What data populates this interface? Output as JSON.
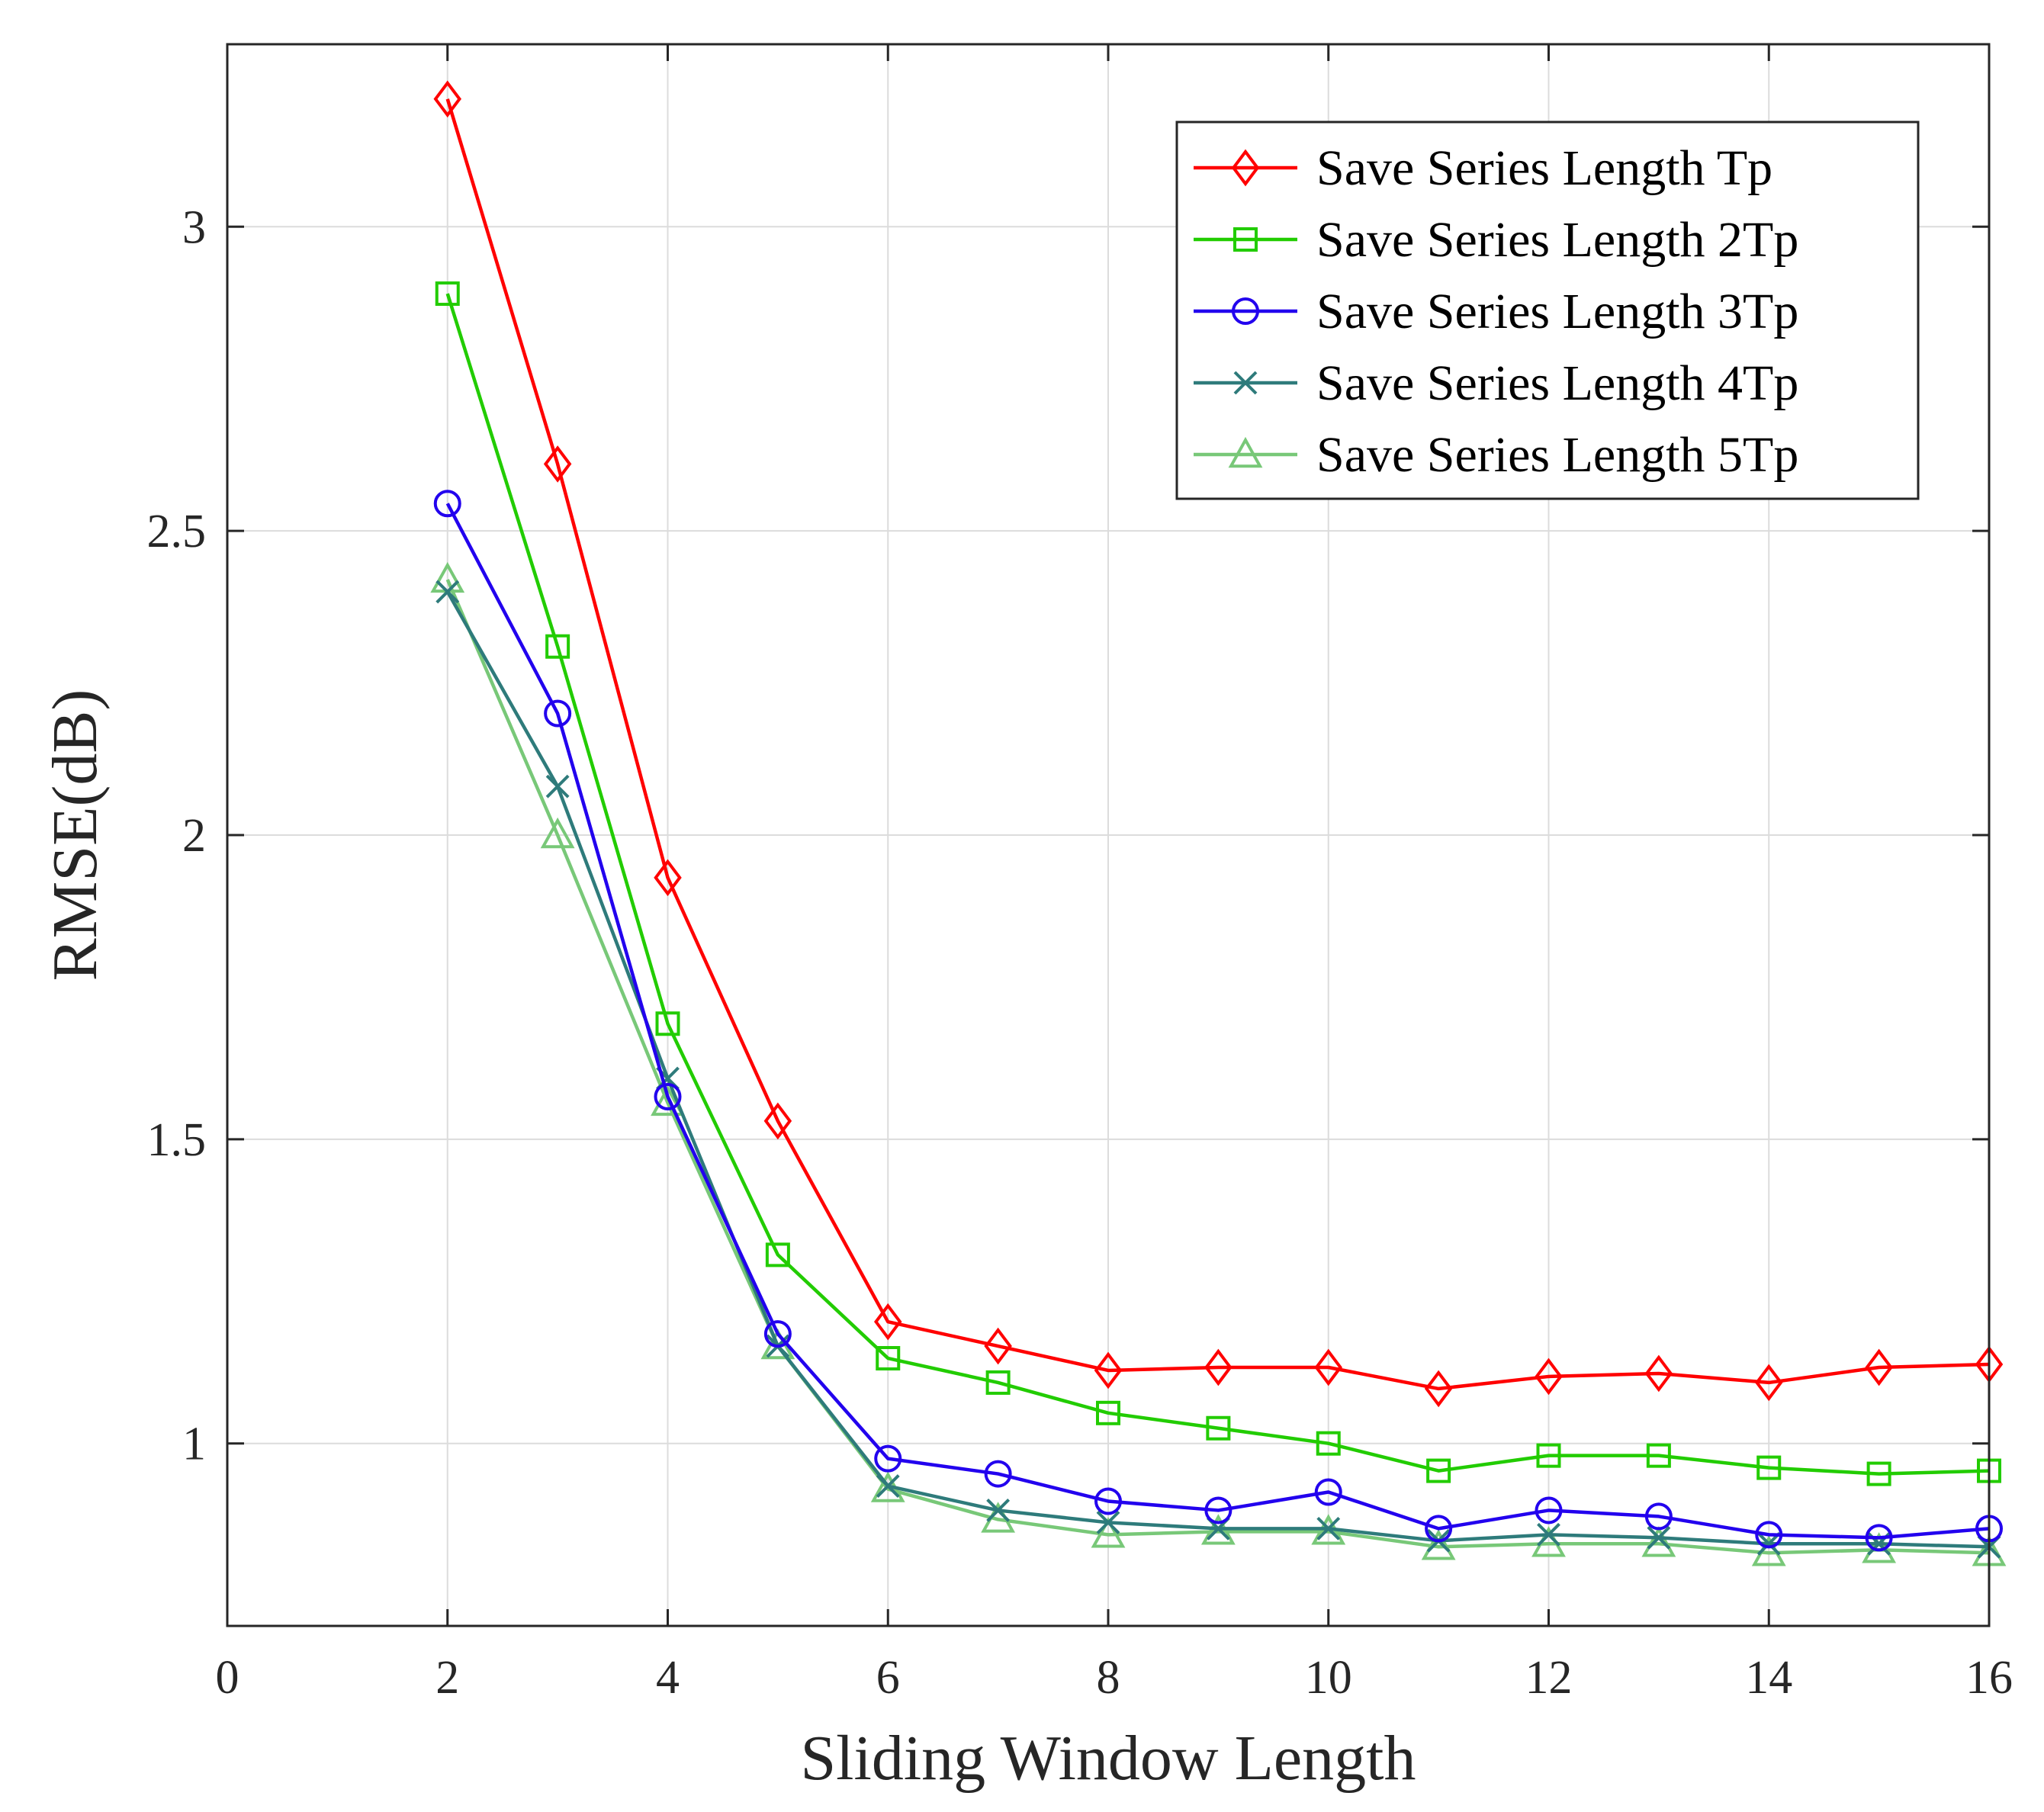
{
  "chart_data": {
    "type": "line",
    "title": "",
    "xlabel": "Sliding Window Length",
    "ylabel": "RMSE(dB)",
    "xlim": [
      0,
      16
    ],
    "ylim": [
      0.7,
      3.3
    ],
    "grid": true,
    "legend_position": "top-right",
    "x_ticks": [
      0,
      2,
      4,
      6,
      8,
      10,
      12,
      14,
      16
    ],
    "x_tick_labels": [
      "0",
      "2",
      "4",
      "6",
      "8",
      "10",
      "12",
      "14",
      "16"
    ],
    "y_ticks": [
      1,
      1.5,
      2,
      2.5,
      3
    ],
    "y_tick_labels": [
      "1",
      "1.5",
      "2",
      "2.5",
      "3"
    ],
    "x": [
      2,
      3,
      4,
      5,
      6,
      7,
      8,
      9,
      10,
      11,
      12,
      13,
      14,
      15,
      16
    ],
    "series": [
      {
        "name": "Save Series Length Tp",
        "color": "#ff0000",
        "marker": "diamond",
        "values": [
          3.21,
          2.61,
          1.93,
          1.53,
          1.2,
          1.16,
          1.12,
          1.125,
          1.125,
          1.09,
          1.11,
          1.115,
          1.1,
          1.125,
          1.13
        ]
      },
      {
        "name": "Save Series Length 2Tp",
        "color": "#22cc00",
        "marker": "square",
        "values": [
          2.89,
          2.31,
          1.69,
          1.31,
          1.14,
          1.1,
          1.05,
          1.025,
          1.0,
          0.955,
          0.98,
          0.98,
          0.96,
          0.95,
          0.955
        ]
      },
      {
        "name": "Save Series Length 3Tp",
        "color": "#2200ee",
        "marker": "circle",
        "values": [
          2.545,
          2.2,
          1.57,
          1.18,
          0.975,
          0.95,
          0.905,
          0.89,
          0.92,
          0.86,
          0.89,
          0.88,
          0.85,
          0.845,
          0.86
        ]
      },
      {
        "name": "Save Series Length 4Tp",
        "color": "#2e7b7b",
        "marker": "x",
        "values": [
          2.4,
          2.08,
          1.6,
          1.16,
          0.93,
          0.89,
          0.87,
          0.86,
          0.86,
          0.84,
          0.85,
          0.845,
          0.835,
          0.835,
          0.83
        ]
      },
      {
        "name": "Save Series Length 5Tp",
        "color": "#78c878",
        "marker": "triangle",
        "values": [
          2.42,
          2.0,
          1.56,
          1.16,
          0.925,
          0.875,
          0.85,
          0.855,
          0.855,
          0.83,
          0.835,
          0.835,
          0.82,
          0.825,
          0.82
        ]
      }
    ]
  }
}
